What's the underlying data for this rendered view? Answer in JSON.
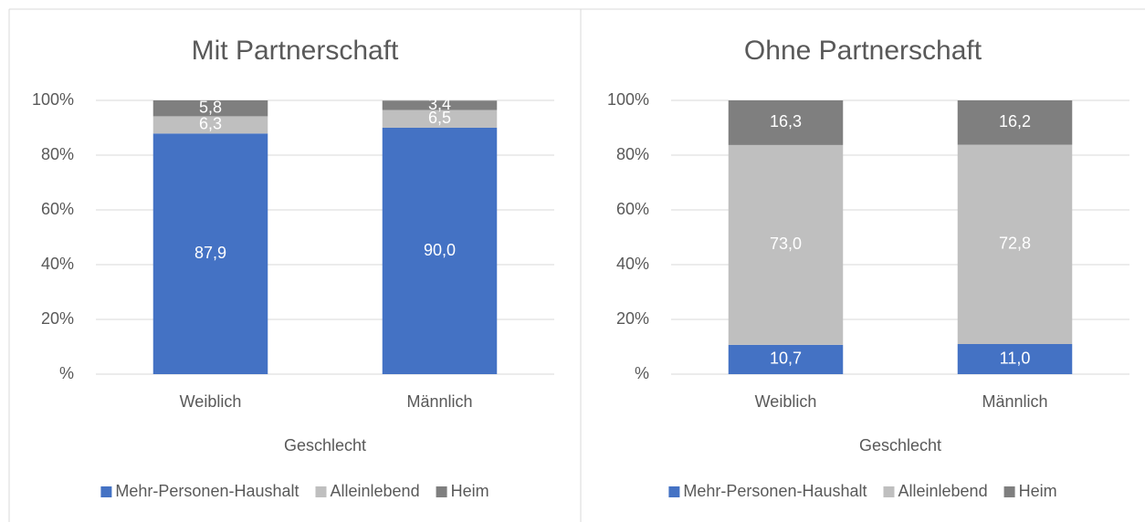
{
  "chart_data": [
    {
      "type": "bar",
      "stacked": true,
      "title": "Mit Partnerschaft",
      "x_label": "Geschlecht",
      "categories": [
        "Weiblich",
        "Männlich"
      ],
      "series": [
        {
          "name": "Mehr-Personen-Haushalt",
          "color": "#4472c4",
          "values": [
            87.9,
            90.0
          ],
          "value_labels": [
            "87,9",
            "90,0"
          ]
        },
        {
          "name": "Alleinlebend",
          "color": "#bfbfbf",
          "values": [
            6.3,
            6.5
          ],
          "value_labels": [
            "6,3",
            "6,5"
          ]
        },
        {
          "name": "Heim",
          "color": "#7f7f7f",
          "values": [
            5.8,
            3.4
          ],
          "value_labels": [
            "5,8",
            "3,4"
          ]
        }
      ],
      "ylim": [
        0,
        100
      ],
      "yticks": [
        {
          "value": 0,
          "label": "%"
        },
        {
          "value": 20,
          "label": "20%"
        },
        {
          "value": 40,
          "label": "40%"
        },
        {
          "value": 60,
          "label": "60%"
        },
        {
          "value": 80,
          "label": "80%"
        },
        {
          "value": 100,
          "label": "100%"
        }
      ],
      "grid": true,
      "legend": "bottom"
    },
    {
      "type": "bar",
      "stacked": true,
      "title": "Ohne Partnerschaft",
      "x_label": "Geschlecht",
      "categories": [
        "Weiblich",
        "Männlich"
      ],
      "series": [
        {
          "name": "Mehr-Personen-Haushalt",
          "color": "#4472c4",
          "values": [
            10.7,
            11.0
          ],
          "value_labels": [
            "10,7",
            "11,0"
          ]
        },
        {
          "name": "Alleinlebend",
          "color": "#bfbfbf",
          "values": [
            73.0,
            72.8
          ],
          "value_labels": [
            "73,0",
            "72,8"
          ]
        },
        {
          "name": "Heim",
          "color": "#7f7f7f",
          "values": [
            16.3,
            16.2
          ],
          "value_labels": [
            "16,3",
            "16,2"
          ]
        }
      ],
      "ylim": [
        0,
        100
      ],
      "yticks": [
        {
          "value": 0,
          "label": "%"
        },
        {
          "value": 20,
          "label": "20%"
        },
        {
          "value": 40,
          "label": "40%"
        },
        {
          "value": 60,
          "label": "60%"
        },
        {
          "value": 80,
          "label": "80%"
        },
        {
          "value": 100,
          "label": "100%"
        }
      ],
      "grid": true,
      "legend": "bottom"
    }
  ]
}
